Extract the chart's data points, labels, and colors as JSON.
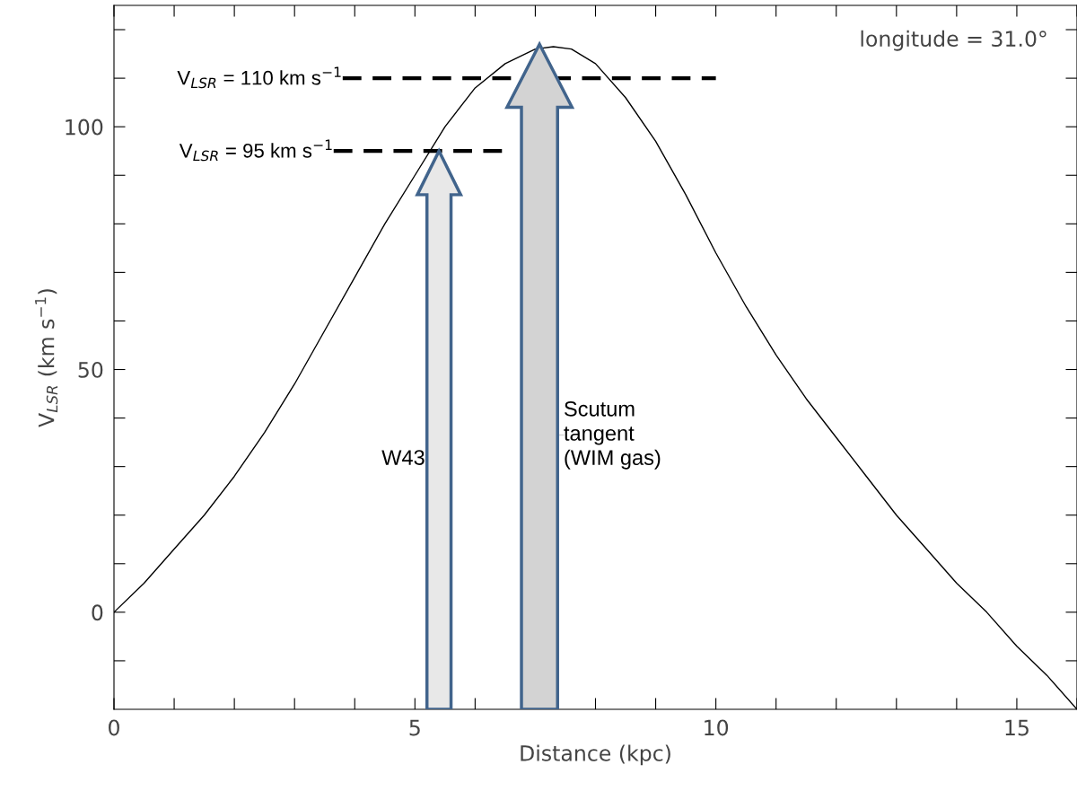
{
  "chart_data": {
    "type": "line",
    "xlabel": "Distance (kpc)",
    "ylabel": "V$_{LSR}$ (km s$^{−1}$)",
    "xlim": [
      0,
      16
    ],
    "ylim": [
      -20,
      125
    ],
    "xticks": [
      0,
      {
        "value": 1,
        "label": null
      },
      {
        "value": 2,
        "label": null
      },
      {
        "value": 3,
        "label": null
      },
      {
        "value": 4,
        "label": null
      },
      5,
      {
        "value": 6,
        "label": null
      },
      {
        "value": 7,
        "label": null
      },
      {
        "value": 8,
        "label": null
      },
      {
        "value": 9,
        "label": null
      },
      10,
      {
        "value": 11,
        "label": null
      },
      {
        "value": 12,
        "label": null
      },
      {
        "value": 13,
        "label": null
      },
      {
        "value": 14,
        "label": null
      },
      15,
      {
        "value": 16,
        "label": null
      }
    ],
    "yticks": [
      {
        "value": -10,
        "label": null
      },
      0,
      {
        "value": 10,
        "label": null
      },
      {
        "value": 20,
        "label": null
      },
      {
        "value": 30,
        "label": null
      },
      {
        "value": 40,
        "label": null
      },
      50,
      {
        "value": 60,
        "label": null
      },
      {
        "value": 70,
        "label": null
      },
      {
        "value": 80,
        "label": null
      },
      {
        "value": 90,
        "label": null
      },
      100,
      {
        "value": 110,
        "label": null
      },
      {
        "value": 120,
        "label": null
      }
    ],
    "grid": false,
    "legend": false,
    "series": [
      {
        "color": "#000000",
        "line_style": "solid",
        "x": [
          0,
          0.5,
          1,
          1.5,
          2,
          2.5,
          3,
          3.5,
          4,
          4.5,
          5,
          5.5,
          6,
          6.5,
          7,
          7.3,
          7.6,
          8,
          8.5,
          9,
          9.5,
          10,
          10.5,
          11,
          11.5,
          12,
          12.5,
          13,
          13.5,
          14,
          14.5,
          15,
          15.5,
          16
        ],
        "values": [
          0,
          6,
          13,
          20,
          28,
          37,
          47,
          58,
          69,
          80,
          90,
          100,
          108,
          113,
          116,
          116.5,
          116,
          113,
          106,
          97,
          86,
          74,
          63,
          53,
          44,
          36,
          28,
          20,
          13,
          6,
          0,
          -7,
          -13,
          -20
        ]
      },
      {
        "name": "V$_{LSR}$ = 110 km s$^{−1}$",
        "color": "#000000",
        "line_style": "dashed",
        "x": [
          3.8,
          10
        ],
        "values": [
          110,
          110
        ]
      },
      {
        "name": "V$_{LSR}$ = 95 km s$^{−1}$",
        "color": "#000000",
        "line_style": "dashed",
        "x": [
          3.65,
          6.45
        ],
        "values": [
          95,
          95
        ]
      }
    ],
    "annotations": [
      "longitude = 31.0°",
      {
        "text": "W43",
        "x": 5.4,
        "y": 95
      },
      {
        "text": "Scutum\ntangent\n(WIM gas)",
        "x": 7.07,
        "y": 117
      }
    ]
  }
}
